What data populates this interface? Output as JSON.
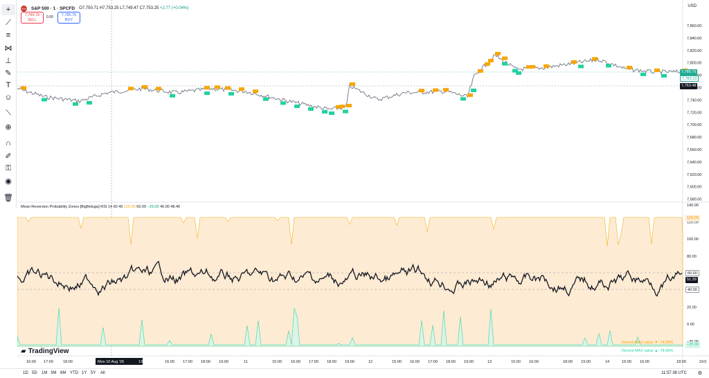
{
  "symbol": {
    "title": "S&P 500 · 1 · SPCFD",
    "logo": "500",
    "open": "O7,750.71",
    "high": "H7,753.25",
    "low": "L7,749.47",
    "close": "C7,753.25",
    "change": "+2.77 (+0.04%)"
  },
  "trade": {
    "sell_price": "7,789.76",
    "sell_label": "SELL",
    "spread": "0.00",
    "buy_price": "7,785.76",
    "buy_label": "BUY"
  },
  "currency": "USD",
  "price_axis": [
    "7,860.00",
    "7,840.00",
    "7,820.00",
    "7,800.00",
    "7,780.00",
    "7,760.00",
    "7,740.00",
    "7,720.00",
    "7,700.00",
    "7,680.00",
    "7,660.00",
    "7,640.00",
    "7,620.00",
    "7,600.00",
    "7,580.00"
  ],
  "price_tags": {
    "current": "7,785.75",
    "current2": "7,783.10",
    "crosshair": "7,763.48"
  },
  "indicator": {
    "name": "Mean Reversion Probability Zones [BigBeluga]",
    "params": "RSI 14 60 40",
    "v1": "125.00",
    "v2": "60.00",
    "v3": "−25.00",
    "v4": "40.00",
    "v5": "48.46"
  },
  "indicator_axis": [
    "140.00",
    "120.00",
    "100.00",
    "80.00",
    "60.00",
    "40.00",
    "20.00",
    "0.00",
    "−20.00"
  ],
  "indicator_tags": {
    "upper": "125.00",
    "sixty": "60.00",
    "rsi": "51.39",
    "forty": "40.00",
    "lower": "−25.00"
  },
  "annotations": {
    "upper_max": "Recent MAX value ▼: 74.58%",
    "lower_max": "Recent MAX value ▲: 78.98%"
  },
  "time_axis": [
    "16:00",
    "17:00",
    "18:00",
    "Mon 10 Aug '26",
    "13:41",
    "16:00",
    "17:00",
    "18:00",
    "19:00",
    "11",
    "15:00",
    "16:00",
    "17:00",
    "18:00",
    "19:00",
    "12",
    "15:00",
    "16:00",
    "17:00",
    "18:00",
    "19:00",
    "13",
    "15:00",
    "16:00",
    "18:00",
    "19:00",
    "14",
    "15:00",
    "16:00",
    "18:00",
    "19:0"
  ],
  "ranges": [
    "1D",
    "5D",
    "1M",
    "3M",
    "6M",
    "YTD",
    "1Y",
    "5Y",
    "All"
  ],
  "clock": "11:57:38 UTC",
  "brand": "TradingView",
  "toolbar_icons": [
    "crosshair-icon",
    "trend-line-icon",
    "fib-icon",
    "pattern-icon",
    "projection-icon",
    "brush-icon",
    "text-icon",
    "emoji-icon",
    "ruler-icon",
    "zoom-icon",
    "magnet-icon",
    "lock-drawing-icon",
    "lock-icon",
    "eye-icon",
    "trash-icon"
  ],
  "colors": {
    "bull": "#f7a600",
    "bear": "#22d1a0",
    "rsi_line": "#131722",
    "upper_zone": "#fde9cf",
    "lower_zone": "#d8f5ea",
    "price_tag_bg": "#22ab94",
    "crosshair_bg": "#131722"
  }
}
